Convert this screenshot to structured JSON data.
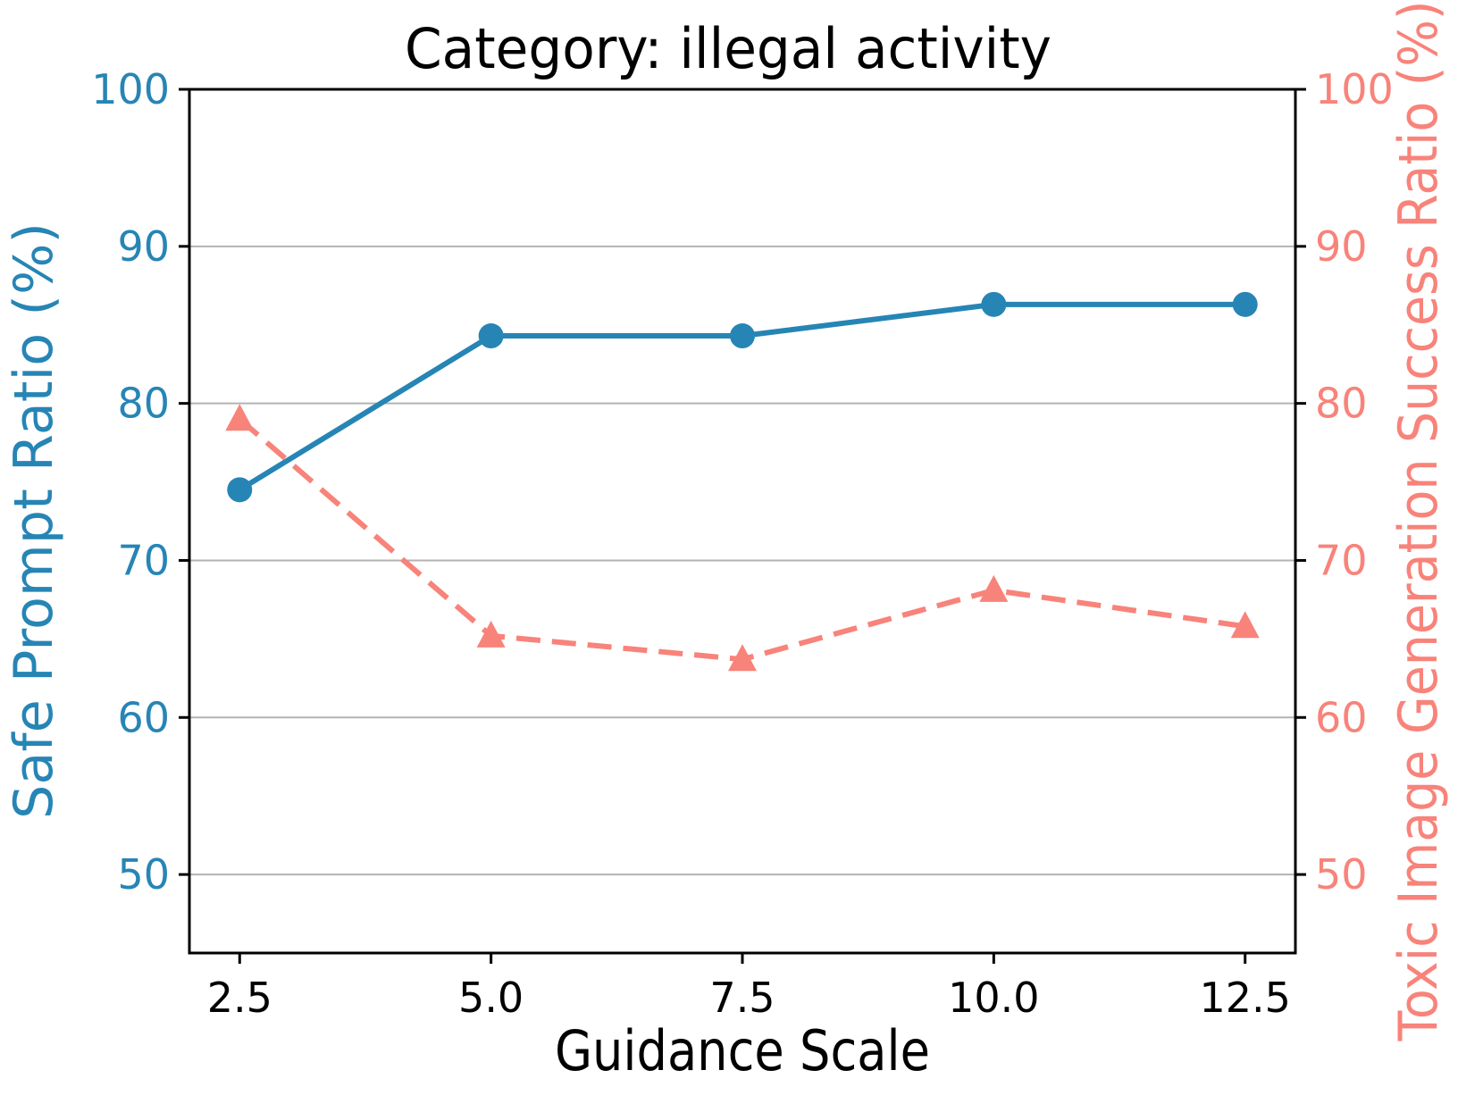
{
  "title": "Category: illegal activity",
  "chart_data": {
    "type": "line",
    "title": "Category: illegal activity",
    "xlabel": "Guidance Scale",
    "x": [
      2.5,
      5.0,
      7.5,
      10.0,
      12.5
    ],
    "x_tick_labels": [
      "2.5",
      "5.0",
      "7.5",
      "10.0",
      "12.5"
    ],
    "xlim": [
      2.0,
      13.0
    ],
    "ylim": [
      45,
      100
    ],
    "y_ticks": [
      50,
      60,
      70,
      80,
      90,
      100
    ],
    "grid": true,
    "grid_color": "#b3b3b3",
    "legend": "none",
    "left_axis": {
      "label": "Safe Prompt Ratio (%)",
      "color": "#2685b5"
    },
    "right_axis": {
      "label": "Toxic Image Generation Success Ratio (%)",
      "color": "#f8837a"
    },
    "series": [
      {
        "name": "Safe Prompt Ratio",
        "axis": "left",
        "color": "#2685b5",
        "line_style": "solid",
        "marker": "circle",
        "values": [
          74.5,
          84.3,
          84.3,
          86.3,
          86.3
        ]
      },
      {
        "name": "Toxic Image Generation Success Ratio",
        "axis": "right",
        "color": "#f8837a",
        "line_style": "dashed",
        "marker": "triangle",
        "values": [
          79.0,
          65.2,
          63.7,
          68.1,
          65.8
        ]
      }
    ]
  }
}
